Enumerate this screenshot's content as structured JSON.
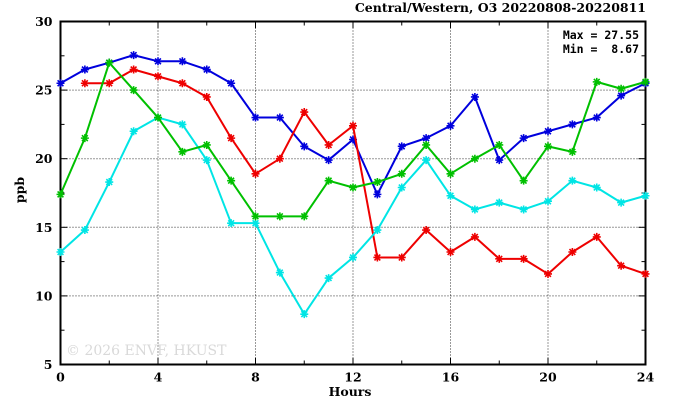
{
  "header": {
    "title": "Central/Western, O3 20220808-20220811"
  },
  "stats": {
    "max_label": "Max = 27.55",
    "min_label": "Min =  8.67"
  },
  "watermark": "© 2026 ENVF, HKUST",
  "axes": {
    "ylabel": "ppb",
    "xlabel": "Hours"
  },
  "chart_data": {
    "type": "line",
    "title": "Central/Western, O3 20220808-20220811",
    "xlabel": "Hours",
    "ylabel": "ppb",
    "xlim": [
      0,
      24
    ],
    "ylim": [
      5,
      30
    ],
    "x_major_ticks": [
      0,
      4,
      8,
      12,
      16,
      20,
      24
    ],
    "x_minor_step": 2,
    "y_major_ticks": [
      5,
      10,
      15,
      20,
      25,
      30
    ],
    "y_minor_step": 2.5,
    "grid": true,
    "grid_x_lines": [
      4,
      8,
      12,
      16,
      20
    ],
    "grid_y_lines": [
      10,
      15,
      20,
      25
    ],
    "legend_position": "none",
    "marker": "asterisk",
    "annotations": {
      "max": 27.55,
      "min": 8.67
    },
    "x": [
      0,
      1,
      2,
      3,
      4,
      5,
      6,
      7,
      8,
      9,
      10,
      11,
      12,
      13,
      14,
      15,
      16,
      17,
      18,
      19,
      20,
      21,
      22,
      23,
      24
    ],
    "series": [
      {
        "name": "series-blue",
        "color": "#0000dd",
        "values": [
          25.5,
          26.5,
          27.0,
          27.55,
          27.1,
          27.1,
          26.5,
          25.5,
          23.0,
          23.0,
          20.9,
          19.9,
          21.4,
          17.4,
          20.9,
          21.5,
          22.4,
          24.5,
          19.9,
          21.5,
          22.0,
          22.5,
          23.0,
          24.6,
          25.5
        ]
      },
      {
        "name": "series-red",
        "color": "#ee0000",
        "values": [
          null,
          25.5,
          25.5,
          26.5,
          26.0,
          25.5,
          24.5,
          21.5,
          18.9,
          20.0,
          23.4,
          21.0,
          22.4,
          12.8,
          12.8,
          14.8,
          13.2,
          14.3,
          12.7,
          12.7,
          11.6,
          13.2,
          14.3,
          12.2,
          11.6
        ]
      },
      {
        "name": "series-cyan",
        "color": "#00e5e5",
        "values": [
          13.2,
          14.8,
          18.3,
          22.0,
          23.0,
          22.5,
          19.9,
          15.3,
          15.3,
          11.7,
          8.67,
          11.3,
          12.8,
          14.8,
          17.9,
          19.9,
          17.3,
          16.3,
          16.8,
          16.3,
          16.9,
          18.4,
          17.9,
          16.8,
          17.3
        ]
      },
      {
        "name": "series-green",
        "color": "#00c000",
        "values": [
          17.4,
          21.5,
          27.0,
          25.0,
          23.0,
          20.5,
          21.0,
          18.4,
          15.8,
          15.8,
          15.8,
          18.4,
          17.9,
          18.3,
          18.9,
          21.0,
          18.9,
          20.0,
          21.0,
          18.4,
          20.9,
          20.5,
          25.6,
          25.1,
          25.6
        ]
      }
    ]
  }
}
